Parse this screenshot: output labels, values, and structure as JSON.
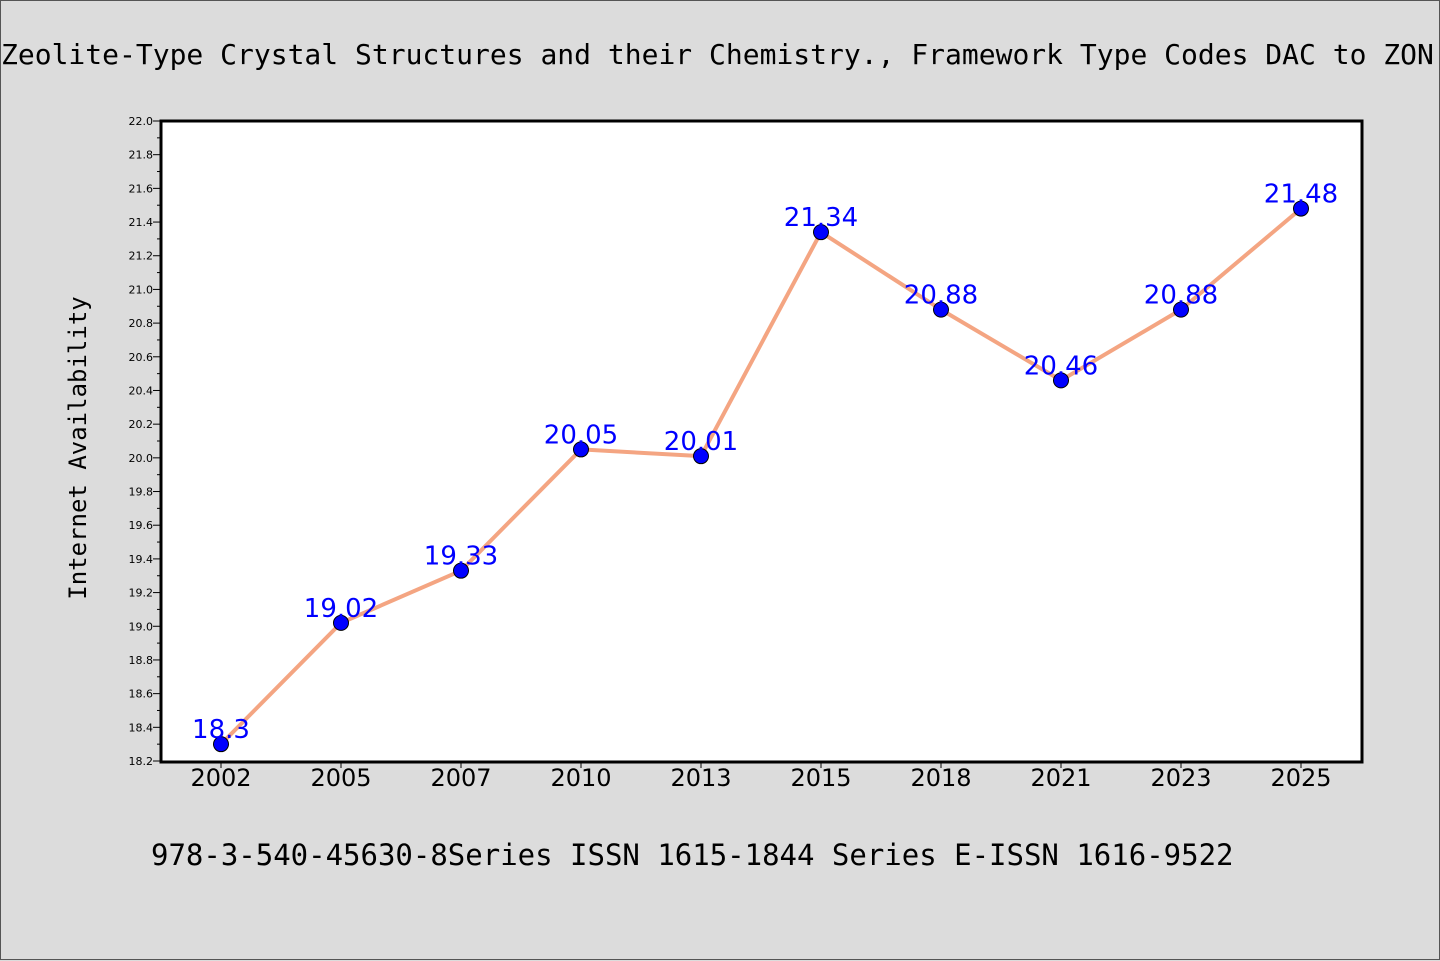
{
  "title": "Zeolite-Type Crystal Structures and their Chemistry., Framework Type Codes DAC to ZON",
  "footer": "978-3-540-45630-8Series ISSN 1615-1844 Series E-ISSN 1616-9522",
  "colors": {
    "background": "#dcdcdc",
    "plot_background": "#ffffff",
    "line": "#f4a582",
    "marker": "#0000ff",
    "data_label": "#0000ff"
  },
  "chart_data": {
    "type": "line",
    "title": "Zeolite-Type Crystal Structures and their Chemistry., Framework Type Codes DAC to ZON",
    "xlabel": "",
    "ylabel": "Internet Availability",
    "categories": [
      "2002",
      "2005",
      "2007",
      "2010",
      "2013",
      "2015",
      "2018",
      "2021",
      "2023",
      "2025"
    ],
    "series": [
      {
        "name": "",
        "values": [
          18.3,
          19.02,
          19.33,
          20.05,
          20.01,
          21.34,
          20.88,
          20.46,
          20.88,
          21.48
        ]
      }
    ],
    "data_labels": [
      "18.3",
      "19.02",
      "19.33",
      "20.05",
      "20.01",
      "21.34",
      "20.88",
      "20.46",
      "20.88",
      "21.48"
    ],
    "ylim": [
      18.2,
      22.0
    ],
    "yticks": [
      "18.2",
      "18.4",
      "18.6",
      "18.8",
      "19.0",
      "19.2",
      "19.4",
      "19.6",
      "19.8",
      "20.0",
      "20.2",
      "20.4",
      "20.6",
      "20.8",
      "21.0",
      "21.2",
      "21.4",
      "21.6",
      "21.8",
      "22.0"
    ],
    "grid": false,
    "legend": "none",
    "marker": "circle"
  }
}
